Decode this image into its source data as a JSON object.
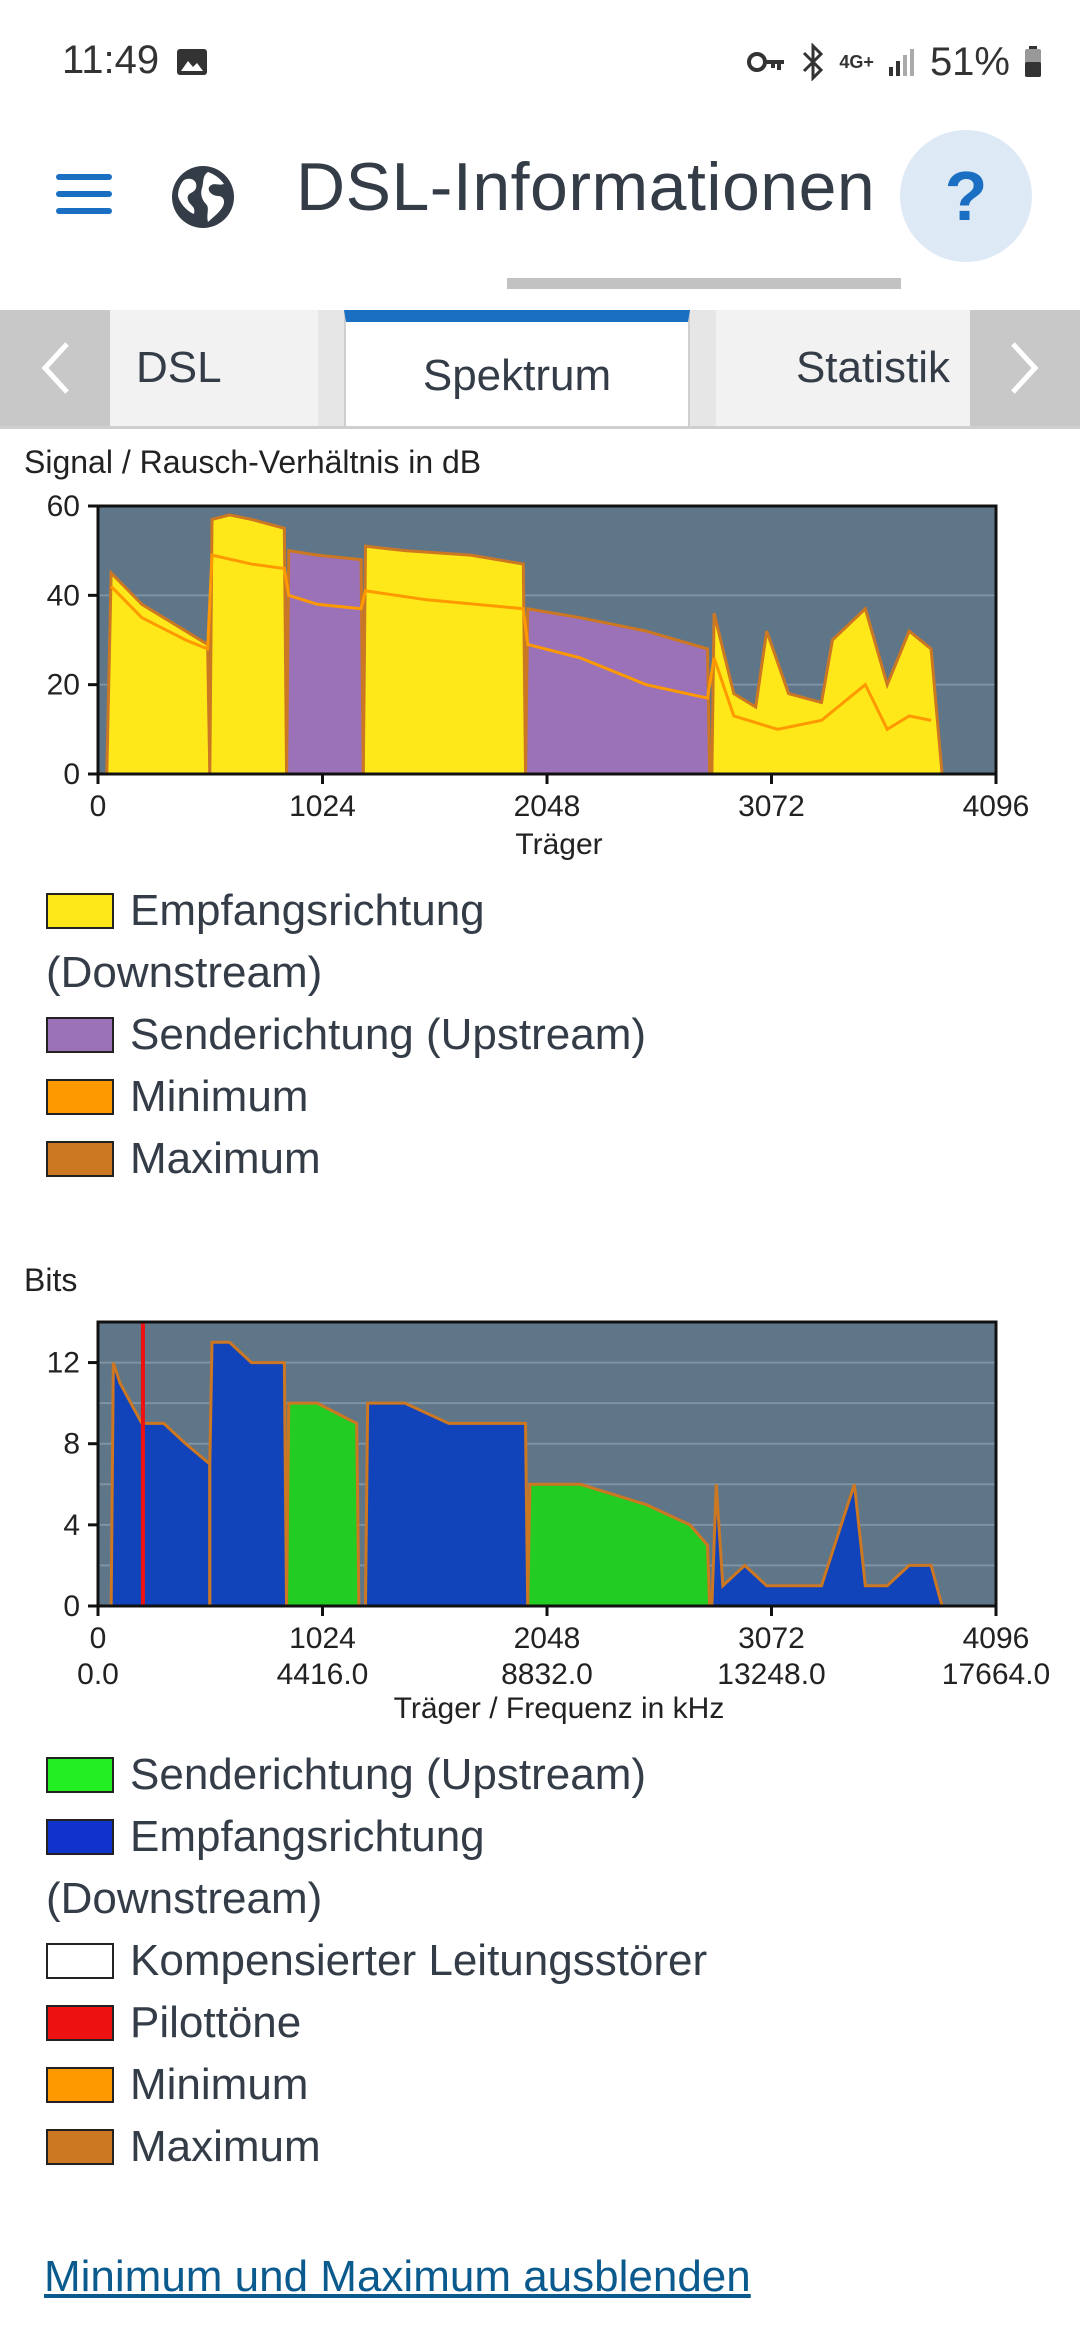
{
  "status_bar": {
    "time": "11:49",
    "network": "4G+",
    "battery": "51%"
  },
  "header": {
    "title": "DSL-Informationen",
    "help_label": "?"
  },
  "tabs": [
    {
      "label": "DSL",
      "active": false
    },
    {
      "label": "Spektrum",
      "active": true
    },
    {
      "label": "Statistik",
      "active": false
    }
  ],
  "colors": {
    "accent": "#1b6fc2",
    "plot_bg": "#5f7689",
    "downstream_snr": "#ffe81a",
    "upstream_snr": "#9b72b8",
    "minimum": "#ff9900",
    "maximum": "#cc7722",
    "bits_upstream": "#22cc22",
    "bits_downstream": "#1144bb",
    "pilot": "#ee1111"
  },
  "chart_snr": {
    "title": "Signal / Rausch-Verhältnis in dB",
    "xlabel": "Träger",
    "x_ticks": [
      "0",
      "1024",
      "2048",
      "3072",
      "4096"
    ],
    "y_ticks": [
      "0",
      "20",
      "40",
      "60"
    ]
  },
  "legend_snr": [
    {
      "label": "Empfangsrichtung (Downstream)",
      "line1": "Empfangsrichtung",
      "line2": "(Downstream)",
      "color": "#ffe81a"
    },
    {
      "label": "Senderichtung (Upstream)",
      "color": "#9b72b8"
    },
    {
      "label": "Minimum",
      "color": "#ff9900"
    },
    {
      "label": "Maximum",
      "color": "#cc7722"
    }
  ],
  "chart_bits": {
    "title": "Bits",
    "xlabel": "Träger / Frequenz in kHz",
    "x_ticks": [
      "0",
      "1024",
      "2048",
      "3072",
      "4096"
    ],
    "x_ticks_freq": [
      "0.0",
      "4416.0",
      "8832.0",
      "13248.0",
      "17664.0"
    ],
    "y_ticks": [
      "0",
      "4",
      "8",
      "12"
    ]
  },
  "legend_bits": [
    {
      "label": "Senderichtung (Upstream)",
      "color": "#22ee22"
    },
    {
      "label": "Empfangsrichtung (Downstream)",
      "line1": "Empfangsrichtung",
      "line2": "(Downstream)",
      "color": "#1133cc"
    },
    {
      "label": "Kompensierter Leitungsstörer",
      "color": "#ffffff"
    },
    {
      "label": "Pilottöne",
      "color": "#ee1111"
    },
    {
      "label": "Minimum",
      "color": "#ff9900"
    },
    {
      "label": "Maximum",
      "color": "#cc7722"
    }
  ],
  "chart_data": [
    {
      "type": "area",
      "title": "Signal / Rausch-Verhältnis in dB",
      "xlabel": "Träger",
      "ylabel": "",
      "xlim": [
        0,
        4096
      ],
      "ylim": [
        0,
        60
      ],
      "grid": true,
      "series": [
        {
          "name": "Empfangsrichtung (Downstream)",
          "segments": [
            {
              "x": [
                40,
                60,
                200,
                400,
                500,
                510
              ],
              "y": [
                0,
                45,
                38,
                32,
                29,
                0
              ]
            },
            {
              "x": [
                510,
                520,
                600,
                700,
                850,
                860
              ],
              "y": [
                0,
                57,
                58,
                57,
                55,
                0
              ]
            },
            {
              "x": [
                1210,
                1220,
                1400,
                1700,
                1940,
                1950
              ],
              "y": [
                0,
                51,
                50,
                49,
                47,
                0
              ]
            },
            {
              "x": [
                2800,
                2810,
                2900,
                3000,
                3050,
                3150,
                3300,
                3350,
                3500,
                3600,
                3700,
                3800,
                3850
              ],
              "y": [
                0,
                36,
                18,
                15,
                32,
                18,
                16,
                30,
                37,
                20,
                32,
                28,
                0
              ]
            }
          ]
        },
        {
          "name": "Senderichtung (Upstream)",
          "segments": [
            {
              "x": [
                860,
                870,
                1000,
                1200,
                1210
              ],
              "y": [
                0,
                50,
                49,
                48,
                0
              ]
            },
            {
              "x": [
                1950,
                1960,
                2200,
                2500,
                2780,
                2790
              ],
              "y": [
                0,
                37,
                35,
                32,
                28,
                0
              ]
            }
          ]
        },
        {
          "name": "Minimum",
          "x": [
            60,
            200,
            400,
            500,
            520,
            700,
            850,
            870,
            1000,
            1200,
            1220,
            1500,
            1940,
            1960,
            2200,
            2500,
            2780,
            2810,
            2900,
            3100,
            3300,
            3500,
            3600,
            3700,
            3800
          ],
          "y": [
            42,
            35,
            30,
            28,
            49,
            47,
            46,
            40,
            38,
            37,
            41,
            39,
            37,
            29,
            26,
            20,
            17,
            26,
            13,
            10,
            12,
            20,
            10,
            13,
            12
          ]
        }
      ]
    },
    {
      "type": "area",
      "title": "Bits",
      "xlabel": "Träger / Frequenz in kHz",
      "ylabel": "",
      "xlim": [
        0,
        4096
      ],
      "ylim": [
        0,
        14
      ],
      "grid": true,
      "series": [
        {
          "name": "Senderichtung (Upstream)",
          "segments": [
            {
              "x": [
                860,
                870,
                1000,
                1180,
                1190
              ],
              "y": [
                0,
                10,
                10,
                9,
                0
              ]
            },
            {
              "x": [
                1960,
                1970,
                2200,
                2500,
                2700,
                2780,
                2790
              ],
              "y": [
                0,
                6,
                6,
                5,
                4,
                3,
                0
              ]
            }
          ]
        },
        {
          "name": "Empfangsrichtung (Downstream)",
          "segments": [
            {
              "x": [
                60,
                70,
                100,
                150,
                200,
                300,
                400,
                510
              ],
              "y": [
                0,
                12,
                11,
                10,
                9,
                9,
                8,
                7
              ]
            },
            {
              "x": [
                510,
                520,
                600,
                700,
                850,
                860
              ],
              "y": [
                7,
                13,
                13,
                12,
                12,
                0
              ]
            },
            {
              "x": [
                1220,
                1230,
                1400,
                1600,
                1950,
                1960
              ],
              "y": [
                0,
                10,
                10,
                9,
                9,
                0
              ]
            },
            {
              "x": [
                2800,
                2820,
                2850,
                2950,
                3050,
                3300,
                3450,
                3500,
                3600,
                3700,
                3800,
                3850
              ],
              "y": [
                0,
                6,
                1,
                2,
                1,
                1,
                6,
                1,
                1,
                2,
                2,
                0
              ]
            }
          ]
        },
        {
          "name": "Pilottöne",
          "x": [
            205
          ],
          "y": [
            14
          ]
        }
      ]
    }
  ],
  "footer": {
    "toggle_link": "Minimum und Maximum ausblenden"
  }
}
